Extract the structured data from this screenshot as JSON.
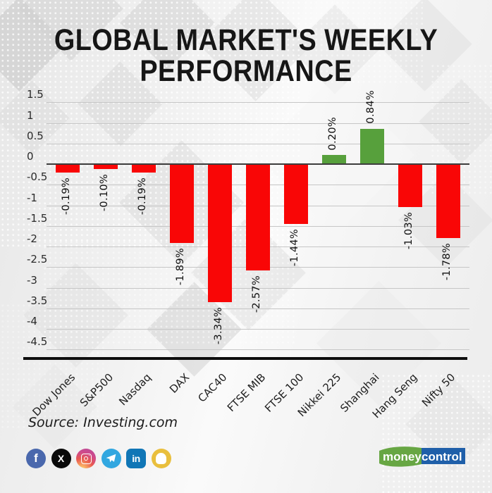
{
  "title": {
    "line1": "GLOBAL MARKET'S WEEKLY",
    "line2": "PERFORMANCE"
  },
  "source": "Source: Investing.com",
  "chart_data": {
    "type": "bar",
    "title": "GLOBAL MARKET'S WEEKLY PERFORMANCE",
    "categories": [
      "Dow Jones",
      "S&P500",
      "Nasdaq",
      "DAX",
      "CAC40",
      "FTSE MIB",
      "FTSE 100",
      "Nikkei 225",
      "Shanghai",
      "Hang Seng",
      "Nifty 50"
    ],
    "values": [
      -0.19,
      -0.1,
      -0.19,
      -1.89,
      -3.34,
      -2.57,
      -1.44,
      0.2,
      0.84,
      -1.03,
      -1.78
    ],
    "value_labels": [
      "-0.19%",
      "-0.10%",
      "-0.19%",
      "-1.89%",
      "-3.34%",
      "-2.57%",
      "-1.44%",
      "0.20%",
      "0.84%",
      "-1.03%",
      "-1.78%"
    ],
    "unit": "%",
    "yticks": [
      1.5,
      1,
      0.5,
      0,
      -0.5,
      -1,
      -1.5,
      -2,
      -2.5,
      -3,
      -3.5,
      -4,
      -4.5
    ],
    "ylim": [
      -4.5,
      1.5
    ],
    "grid": true,
    "bar_colors": {
      "positive": "#57a03c",
      "negative": "#f90606"
    }
  },
  "social": {
    "icons": [
      "facebook",
      "x-twitter",
      "instagram",
      "telegram",
      "linkedin",
      "snapchat"
    ],
    "facebook_glyph": "f",
    "x_glyph": "X",
    "linkedin_glyph": "in"
  },
  "logo": {
    "part1": "money",
    "part2": "control",
    "green": "#67a643",
    "blue": "#1f5fa9"
  }
}
